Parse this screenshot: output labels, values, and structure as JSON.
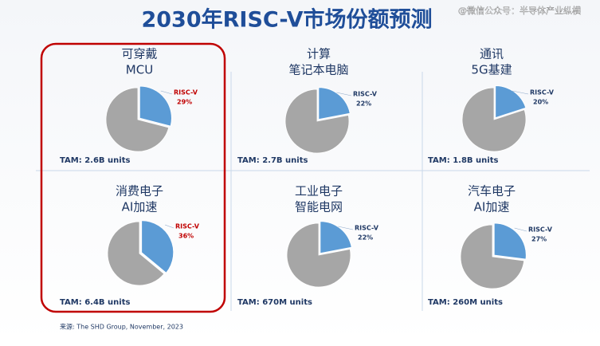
{
  "title": "2030年RISC-V市场份额预测",
  "watermark": "@微信公众号：半导体产业纵横",
  "source": "来源: The SHD Group, November, 2023",
  "chart_data": [
    {
      "type": "pie",
      "title": [
        "可穿戴",
        "MCU"
      ],
      "categories": [
        "RISC-V",
        null
      ],
      "values": [
        29,
        71
      ],
      "value_labels": [
        "29%",
        null
      ],
      "colors": [
        "#5b9bd5",
        "#a6a6a6"
      ],
      "label_color": "#c00000",
      "annotation": "TAM: 2.6B units"
    },
    {
      "type": "pie",
      "title": [
        "计算",
        "笔记本电脑"
      ],
      "categories": [
        "RISC-V",
        null
      ],
      "values": [
        22,
        78
      ],
      "value_labels": [
        "22%",
        null
      ],
      "colors": [
        "#5b9bd5",
        "#a6a6a6"
      ],
      "label_color": "#1f3864",
      "annotation": "TAM: 2.7B units"
    },
    {
      "type": "pie",
      "title": [
        "通讯",
        "5G基建"
      ],
      "categories": [
        "RISC-V",
        null
      ],
      "values": [
        20,
        80
      ],
      "value_labels": [
        "20%",
        null
      ],
      "colors": [
        "#5b9bd5",
        "#a6a6a6"
      ],
      "label_color": "#1f3864",
      "annotation": "TAM: 1.8B units"
    },
    {
      "type": "pie",
      "title": [
        "消费电子",
        "AI加速"
      ],
      "categories": [
        "RISC-V",
        null
      ],
      "values": [
        36,
        64
      ],
      "value_labels": [
        "36%",
        null
      ],
      "colors": [
        "#5b9bd5",
        "#a6a6a6"
      ],
      "label_color": "#c00000",
      "annotation": "TAM: 6.4B units"
    },
    {
      "type": "pie",
      "title": [
        "工业电子",
        "智能电网"
      ],
      "categories": [
        "RISC-V",
        null
      ],
      "values": [
        22,
        78
      ],
      "value_labels": [
        "22%",
        null
      ],
      "colors": [
        "#5b9bd5",
        "#a6a6a6"
      ],
      "label_color": "#1f3864",
      "annotation": "TAM: 670M units"
    },
    {
      "type": "pie",
      "title": [
        "汽车电子",
        "AI加速"
      ],
      "categories": [
        "RISC-V",
        null
      ],
      "values": [
        27,
        73
      ],
      "value_labels": [
        "27%",
        null
      ],
      "colors": [
        "#5b9bd5",
        "#a6a6a6"
      ],
      "label_color": "#1f3864",
      "annotation": "TAM: 260M units"
    }
  ]
}
